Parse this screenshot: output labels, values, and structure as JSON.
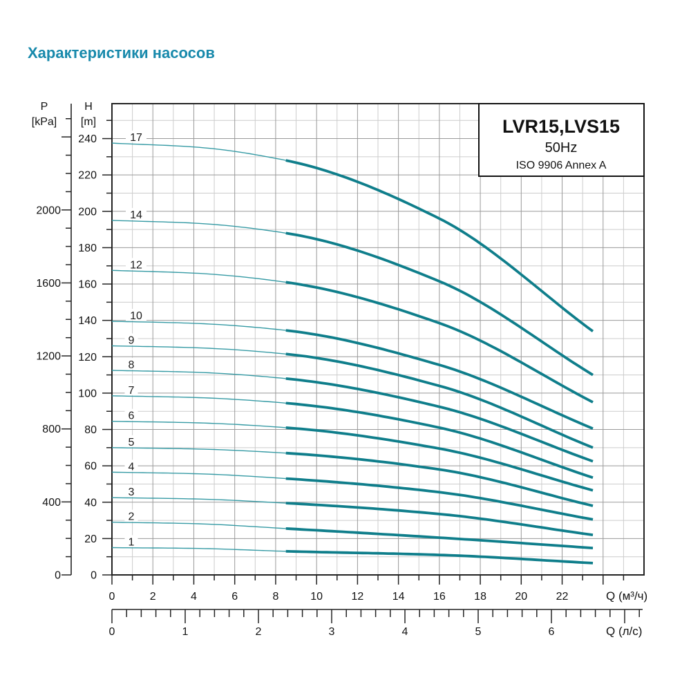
{
  "page": {
    "title": "Характеристики насосов"
  },
  "colors": {
    "title": "#1789ab",
    "curve": "#0f7e8b",
    "curve_lead": "#359aa4",
    "grid_light": "#cccccc",
    "grid_dark": "#999999",
    "axis": "#222222",
    "text": "#111111"
  },
  "legend": {
    "model": "LVR15,LVS15",
    "frequency": "50Hz",
    "standard": "ISO 9906 Annex A"
  },
  "axes": {
    "p": {
      "name": "P",
      "unit": "[kPa]",
      "tick_labels": [
        "0",
        "400",
        "800",
        "1200",
        "1600",
        "2000"
      ],
      "major_step": 400,
      "minor_step": 100,
      "max": 2500
    },
    "h": {
      "name": "H",
      "unit": "[m]",
      "tick_labels": [
        "0",
        "20",
        "40",
        "60",
        "80",
        "100",
        "120",
        "140",
        "160",
        "180",
        "200",
        "220",
        "240"
      ],
      "major_step": 20,
      "minor_step": 10,
      "max": 250
    },
    "q_m3h": {
      "label": "Q (м³/ч)",
      "tick_labels": [
        "0",
        "2",
        "4",
        "6",
        "8",
        "10",
        "12",
        "14",
        "16",
        "18",
        "20",
        "22"
      ],
      "major_step": 2,
      "minor_step": 1,
      "max": 26
    },
    "q_ls": {
      "label": "Q (л/с)",
      "tick_labels": [
        "0",
        "1",
        "2",
        "3",
        "4",
        "5",
        "6"
      ],
      "major_step": 1,
      "minor_step": 0.2,
      "max": 7.2
    }
  },
  "chart_data": {
    "type": "line",
    "title": "LVR15,LVS15",
    "subtitle": "50Hz",
    "standard": "ISO 9906 Annex A",
    "xlabel": "Q (м³/ч)",
    "xlabel_secondary": "Q (л/с)",
    "ylabel": "H [m]",
    "ylabel_secondary": "P [kPa]",
    "x_range": [
      0,
      26
    ],
    "y_range_h_m": [
      0,
      260
    ],
    "y_range_p_kpa": [
      0,
      2500
    ],
    "grid": "on",
    "duty_range_start_m3h": 8.5,
    "max_flow_m3h": 23.5,
    "q_samples_m3h": [
      0,
      4,
      8.5,
      16,
      23.5
    ],
    "series": [
      {
        "name": "17",
        "h_m": [
          237.5,
          235.4,
          228.0,
          196.0,
          134.0
        ]
      },
      {
        "name": "14",
        "h_m": [
          195.0,
          193.5,
          188.0,
          161.5,
          110.0
        ]
      },
      {
        "name": "12",
        "h_m": [
          167.5,
          166.0,
          161.0,
          138.5,
          95.0
        ]
      },
      {
        "name": "10",
        "h_m": [
          139.5,
          138.4,
          134.5,
          115.5,
          80.5
        ]
      },
      {
        "name": "9",
        "h_m": [
          126.0,
          125.0,
          121.5,
          104.0,
          70.0
        ]
      },
      {
        "name": "8",
        "h_m": [
          112.5,
          111.5,
          108.0,
          92.5,
          62.5
        ]
      },
      {
        "name": "7",
        "h_m": [
          98.5,
          97.6,
          94.5,
          81.0,
          53.5
        ]
      },
      {
        "name": "6",
        "h_m": [
          84.5,
          83.7,
          81.0,
          69.5,
          46.5
        ]
      },
      {
        "name": "5",
        "h_m": [
          70.0,
          69.3,
          67.0,
          58.0,
          38.0
        ]
      },
      {
        "name": "4",
        "h_m": [
          56.5,
          55.7,
          53.0,
          45.5,
          30.5
        ]
      },
      {
        "name": "3",
        "h_m": [
          42.5,
          41.8,
          39.5,
          33.5,
          22.0
        ]
      },
      {
        "name": "2",
        "h_m": [
          29.0,
          28.2,
          25.5,
          20.5,
          14.8
        ]
      },
      {
        "name": "1",
        "h_m": [
          15.0,
          14.6,
          13.0,
          11.0,
          6.5
        ]
      }
    ]
  }
}
